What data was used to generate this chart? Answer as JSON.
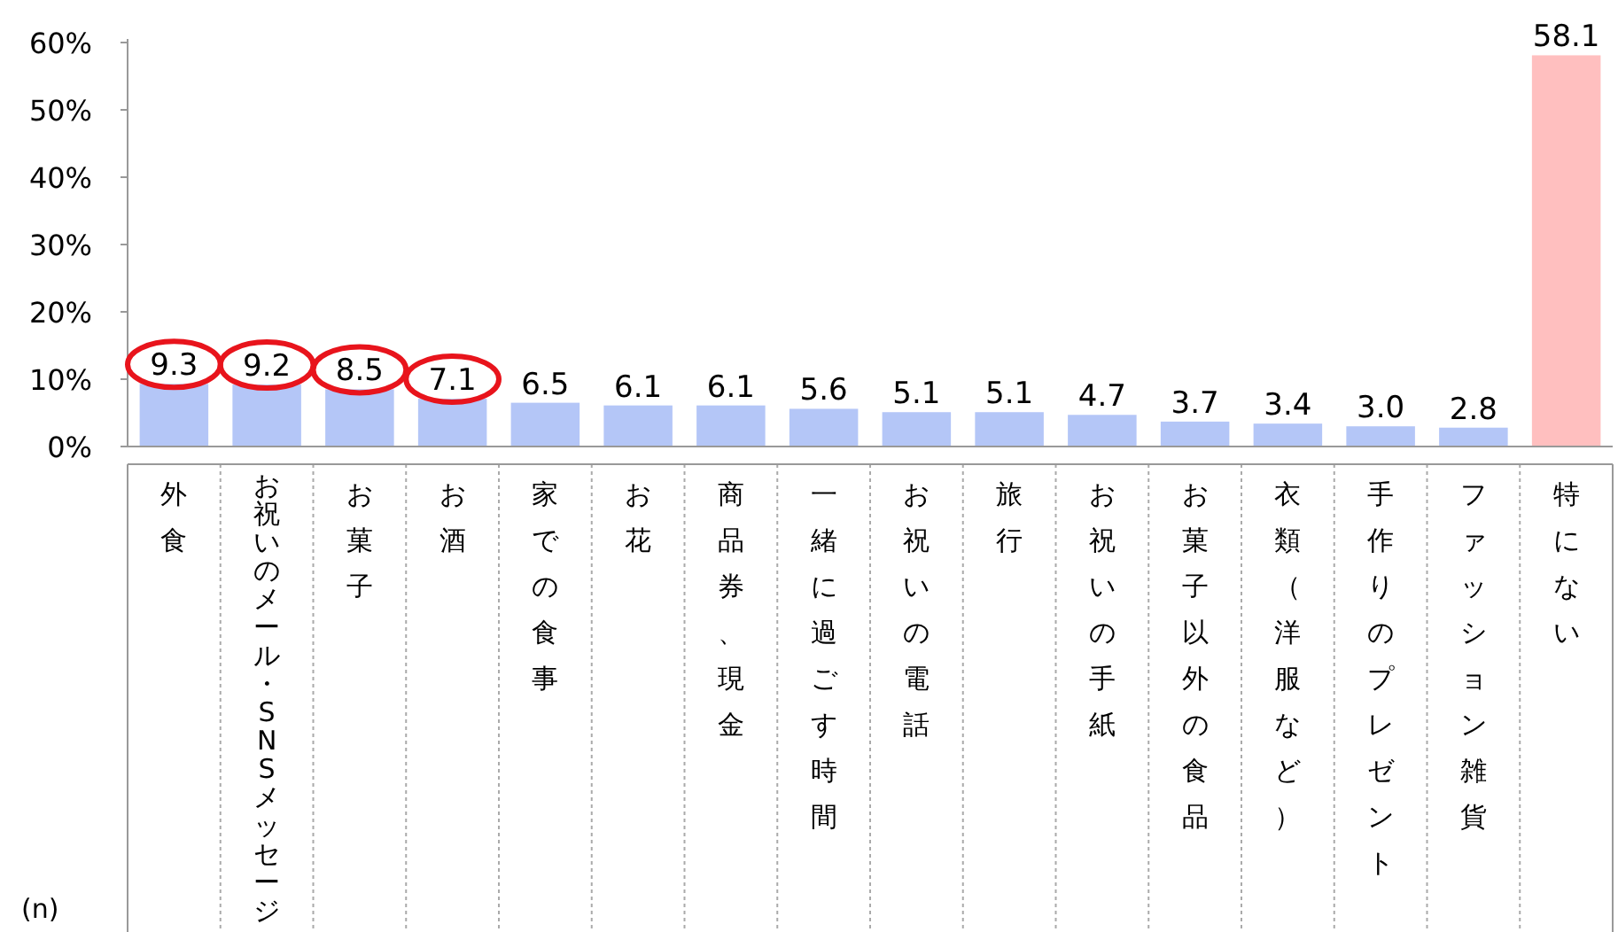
{
  "chart_data": {
    "type": "bar",
    "categories": [
      "外食",
      "お祝いのメール・SNSメッセージ",
      "お菓子",
      "お酒",
      "家での食事",
      "お花",
      "商品券、現金",
      "一緒に過ごす時間",
      "お祝いの電話",
      "旅行",
      "お祝いの手紙",
      "お菓子以外の食品",
      "衣類（洋服など）",
      "手作りのプレゼント",
      "ファッション雑貨",
      "特にない"
    ],
    "values": [
      9.3,
      9.2,
      8.5,
      7.1,
      6.5,
      6.1,
      6.1,
      5.6,
      5.1,
      5.1,
      4.7,
      3.7,
      3.4,
      3.0,
      2.8,
      58.1
    ],
    "colors": [
      "#b4c6f7",
      "#b4c6f7",
      "#b4c6f7",
      "#b4c6f7",
      "#b4c6f7",
      "#b4c6f7",
      "#b4c6f7",
      "#b4c6f7",
      "#b4c6f7",
      "#b4c6f7",
      "#b4c6f7",
      "#b4c6f7",
      "#b4c6f7",
      "#b4c6f7",
      "#b4c6f7",
      "#ffbfbf"
    ],
    "ylim": [
      0,
      60
    ],
    "yticks": [
      {
        "value": 0,
        "label": "0%"
      },
      {
        "value": 10,
        "label": "10%"
      },
      {
        "value": 20,
        "label": "20%"
      },
      {
        "value": 30,
        "label": "30%"
      },
      {
        "value": 40,
        "label": "40%"
      },
      {
        "value": 50,
        "label": "50%"
      },
      {
        "value": 60,
        "label": "60%"
      }
    ],
    "value_labels": [
      "9.3",
      "9.2",
      "8.5",
      "7.1",
      "6.5",
      "6.1",
      "6.1",
      "5.6",
      "5.1",
      "5.1",
      "4.7",
      "3.7",
      "3.4",
      "3.0",
      "2.8",
      "58.1"
    ],
    "grid": false,
    "annotations": [
      "(n)"
    ]
  }
}
